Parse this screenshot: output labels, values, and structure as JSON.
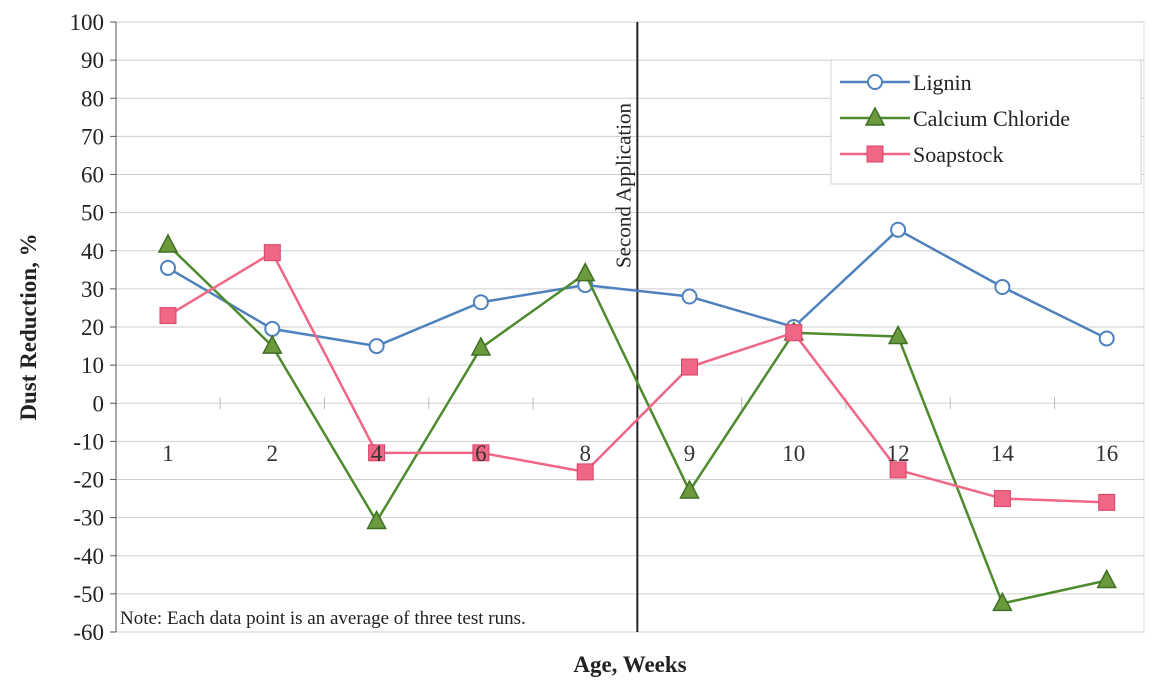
{
  "chart_data": {
    "type": "line",
    "categories": [
      "1",
      "2",
      "4",
      "6",
      "8",
      "9",
      "10",
      "12",
      "14",
      "16"
    ],
    "xlabel": "Age, Weeks",
    "ylabel": "Dust Reduction, %",
    "ylim": [
      -60,
      100
    ],
    "yticks": [
      100,
      90,
      80,
      70,
      60,
      50,
      40,
      30,
      20,
      10,
      0,
      -10,
      -20,
      -30,
      -40,
      -50,
      -60
    ],
    "grid": true,
    "legend_position": "top-right",
    "series": [
      {
        "name": "Lignin",
        "marker": "circle",
        "color": "#4F81BD",
        "values": [
          35.5,
          19.5,
          15,
          26.5,
          31,
          28,
          20,
          45.5,
          30.5,
          17
        ]
      },
      {
        "name": "Calcium Chloride",
        "marker": "triangle",
        "color": "#4E8B2E",
        "values": [
          41.5,
          15,
          -31,
          14.5,
          34,
          -23,
          18.5,
          17.5,
          -52.5,
          -46.5
        ]
      },
      {
        "name": "Soapstock",
        "marker": "square",
        "color": "#F06685",
        "values": [
          23,
          39.5,
          -13,
          -13,
          -18,
          9.5,
          18.5,
          -17.5,
          -25,
          -26
        ]
      }
    ],
    "annotations": [
      {
        "text": "Second Application",
        "between": [
          "8",
          "9"
        ]
      },
      {
        "text": "Note: Each data point is an average of three test runs."
      }
    ]
  }
}
